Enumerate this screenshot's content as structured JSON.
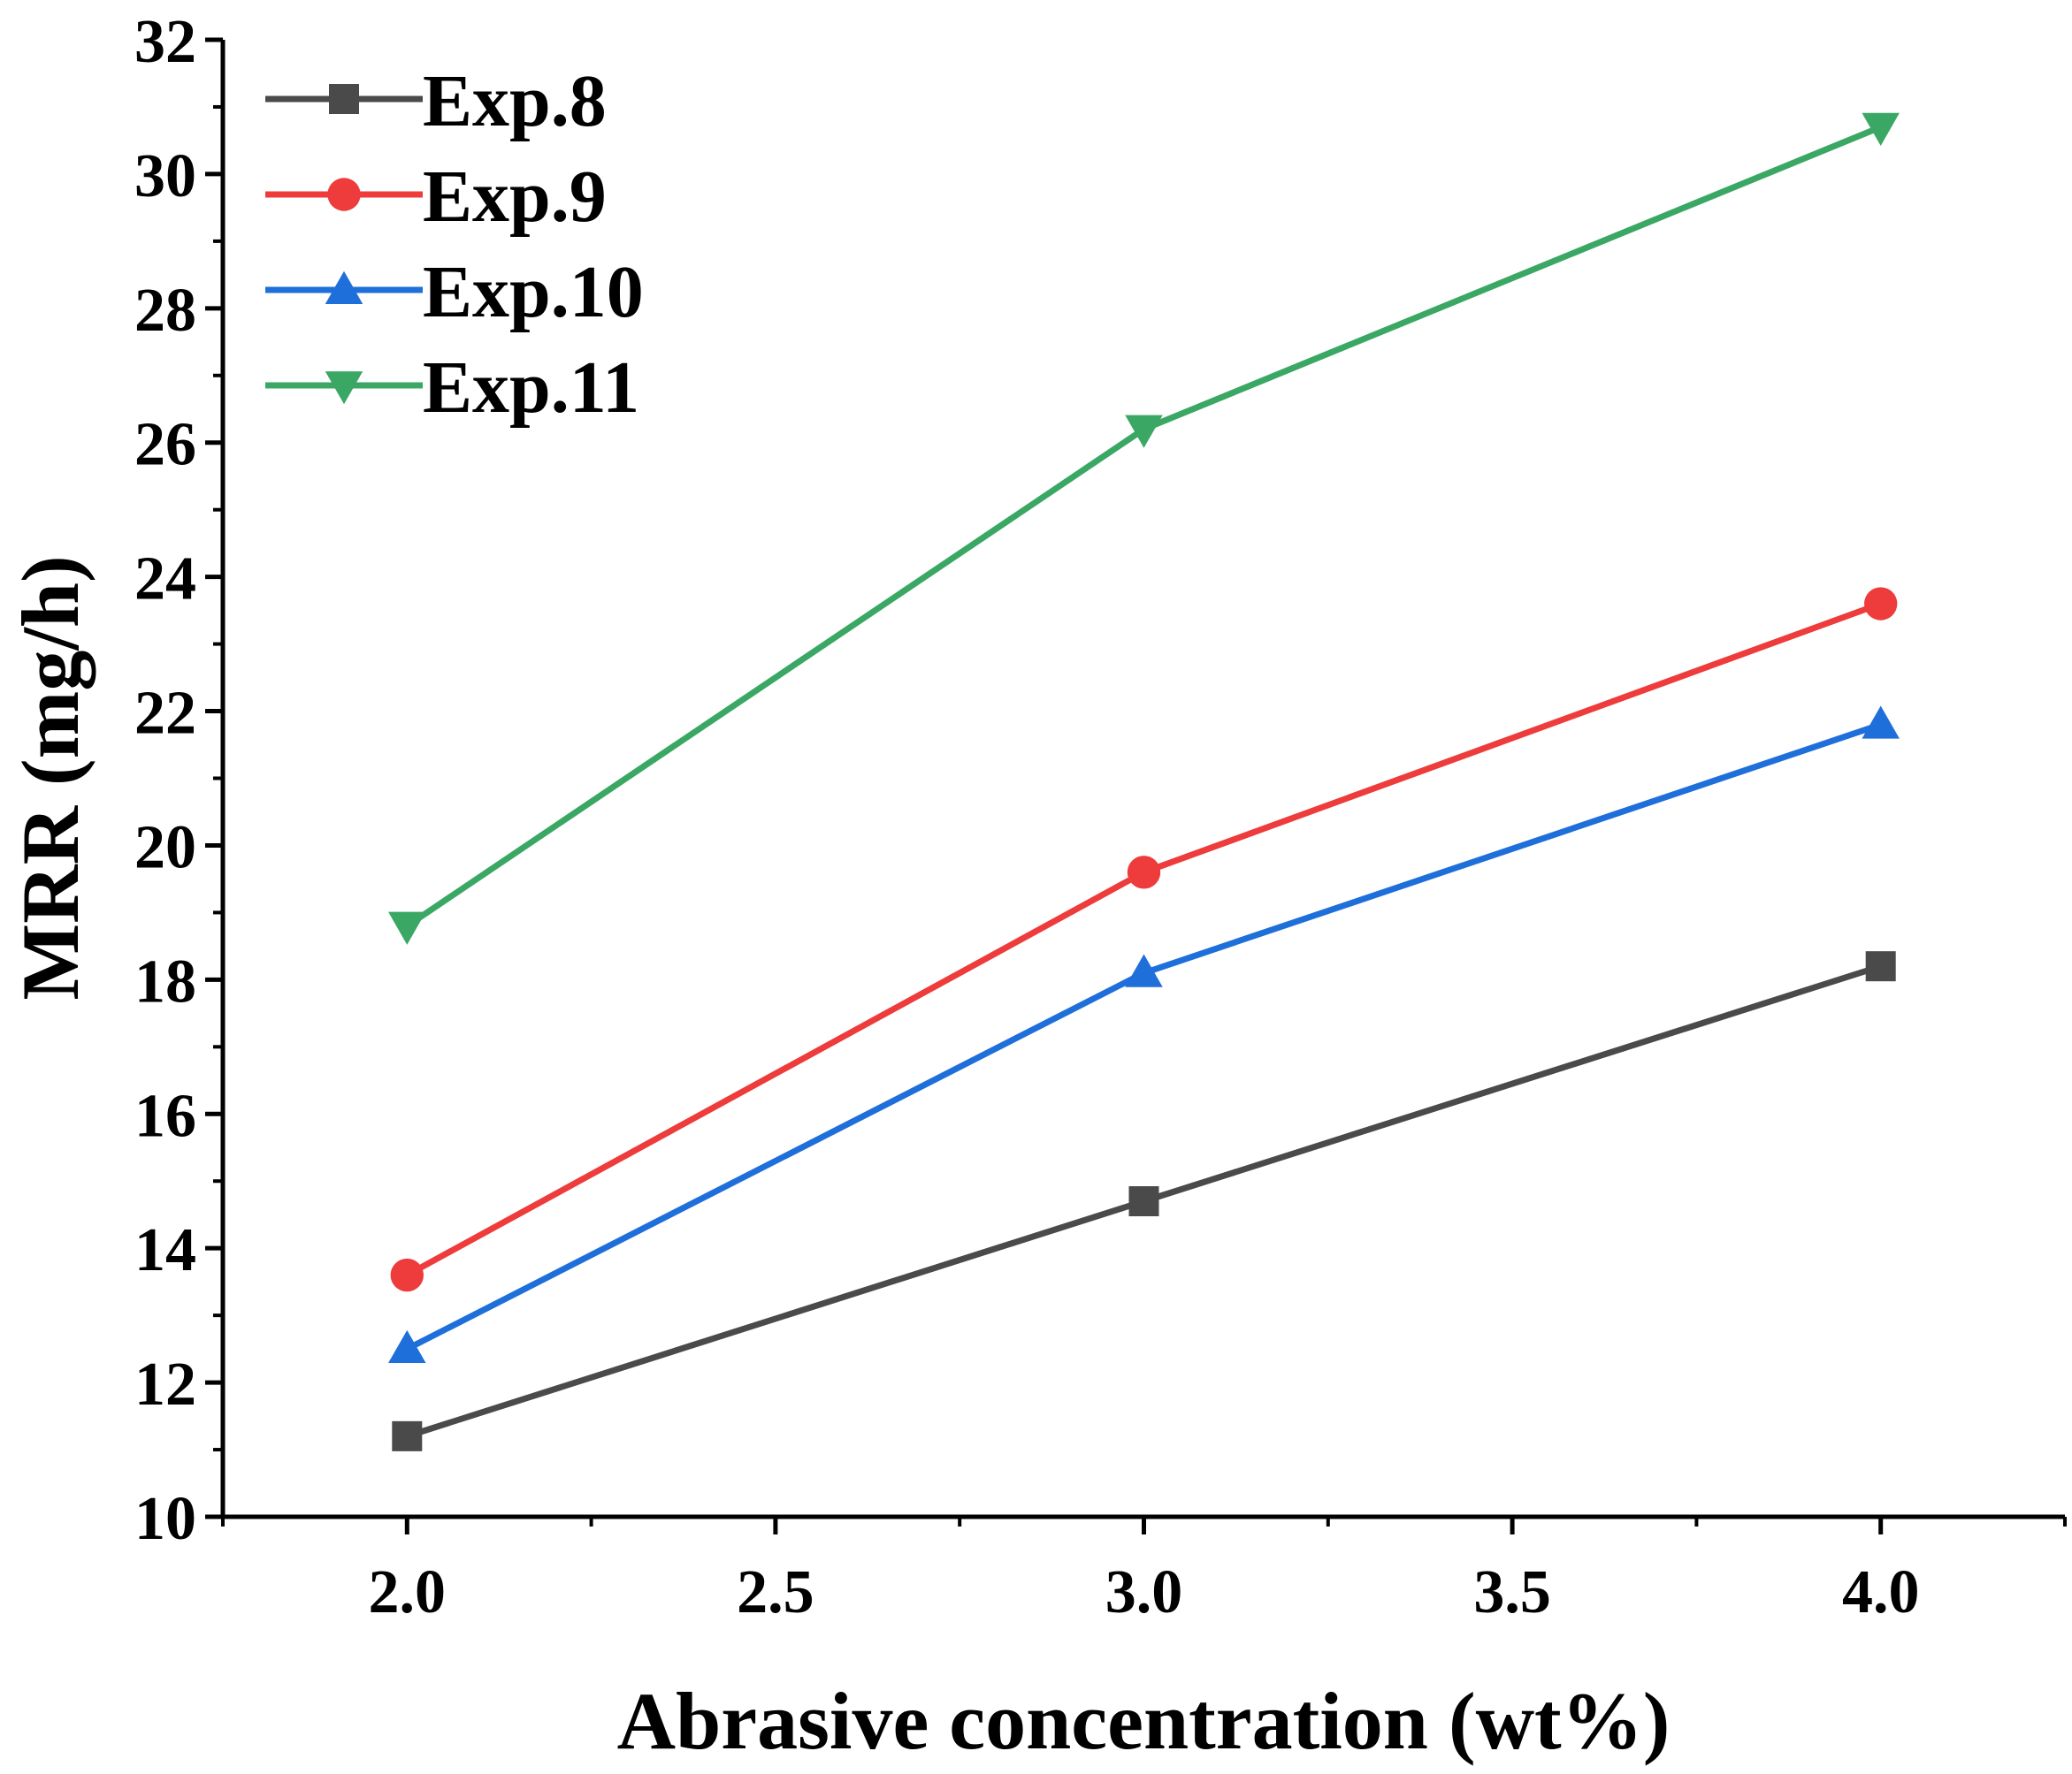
{
  "chart_data": {
    "type": "line",
    "title": "",
    "xlabel": "Abrasive concentration (wt%)",
    "ylabel": "MRR (mg/h)",
    "xlim": [
      1.75,
      4.25
    ],
    "ylim": [
      10,
      32
    ],
    "x_ticks": [
      2.0,
      2.5,
      3.0,
      3.5,
      4.0
    ],
    "x_tick_labels": [
      "2.0",
      "2.5",
      "3.0",
      "3.5",
      "4.0"
    ],
    "y_ticks": [
      10,
      12,
      14,
      16,
      18,
      20,
      22,
      24,
      26,
      28,
      30,
      32
    ],
    "y_tick_labels": [
      "10",
      "12",
      "14",
      "16",
      "18",
      "20",
      "22",
      "24",
      "26",
      "28",
      "30",
      "32"
    ],
    "x": [
      2.0,
      3.0,
      4.0
    ],
    "grid": false,
    "legend_position": "top-left",
    "series": [
      {
        "name": "Exp.8",
        "values": [
          11.2,
          14.7,
          18.2
        ],
        "color": "#4a4a4a",
        "marker": "square"
      },
      {
        "name": "Exp.9",
        "values": [
          13.6,
          19.6,
          23.6
        ],
        "color": "#ee3b3b",
        "marker": "circle"
      },
      {
        "name": "Exp.10",
        "values": [
          12.5,
          18.1,
          21.8
        ],
        "color": "#1f6fdb",
        "marker": "triangle-up"
      },
      {
        "name": "Exp.11",
        "values": [
          18.8,
          26.2,
          30.7
        ],
        "color": "#3aa864",
        "marker": "triangle-down"
      }
    ]
  }
}
